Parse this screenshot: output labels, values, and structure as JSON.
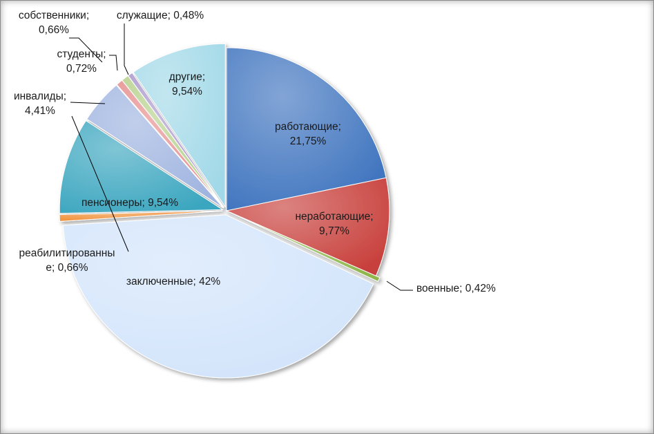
{
  "chart_data": {
    "type": "pie",
    "title": "",
    "slices": [
      {
        "name": "работающие",
        "value": 21.75,
        "label": [
          "работающие;",
          "21,75%"
        ],
        "color": "#3f74bf",
        "exploded": false
      },
      {
        "name": "неработающие",
        "value": 9.77,
        "label": [
          "неработающие;",
          "9,77%"
        ],
        "color": "#c8403c",
        "exploded": false
      },
      {
        "name": "военные",
        "value": 0.42,
        "label": [
          "военные; 0,42%"
        ],
        "color": "#8fb74d",
        "exploded": true
      },
      {
        "name": "заключенные",
        "value": 42,
        "label": [
          "заключенные; 42%"
        ],
        "color": "#d2e4fb",
        "exploded": true
      },
      {
        "name": "реабилитированные",
        "value": 0.66,
        "label": [
          "реабилитированны",
          "е; 0,66%"
        ],
        "color": "#f08c30",
        "exploded": true
      },
      {
        "name": "пенсионеры",
        "value": 9.54,
        "label": [
          "пенсионеры; 9,54%"
        ],
        "color": "#3ba6bf",
        "exploded": true
      },
      {
        "name": "инвалиды",
        "value": 4.41,
        "label": [
          "инвалиды;",
          "4,41%"
        ],
        "color": "#9fb4e0",
        "exploded": true
      },
      {
        "name": "собственники",
        "value": 0.66,
        "label": [
          "собственники;",
          "0,66%"
        ],
        "color": "#e68c8c",
        "exploded": true
      },
      {
        "name": "студенты",
        "value": 0.72,
        "label": [
          "студенты;",
          "0,72%"
        ],
        "color": "#b5d08a",
        "exploded": true
      },
      {
        "name": "служащие",
        "value": 0.48,
        "label": [
          "служащие; 0,48%"
        ],
        "color": "#a896cc",
        "exploded": true
      },
      {
        "name": "другие",
        "value": 9.54,
        "label": [
          "другие;",
          "9,54%"
        ],
        "color": "#a2d9e8",
        "exploded": true
      }
    ]
  }
}
